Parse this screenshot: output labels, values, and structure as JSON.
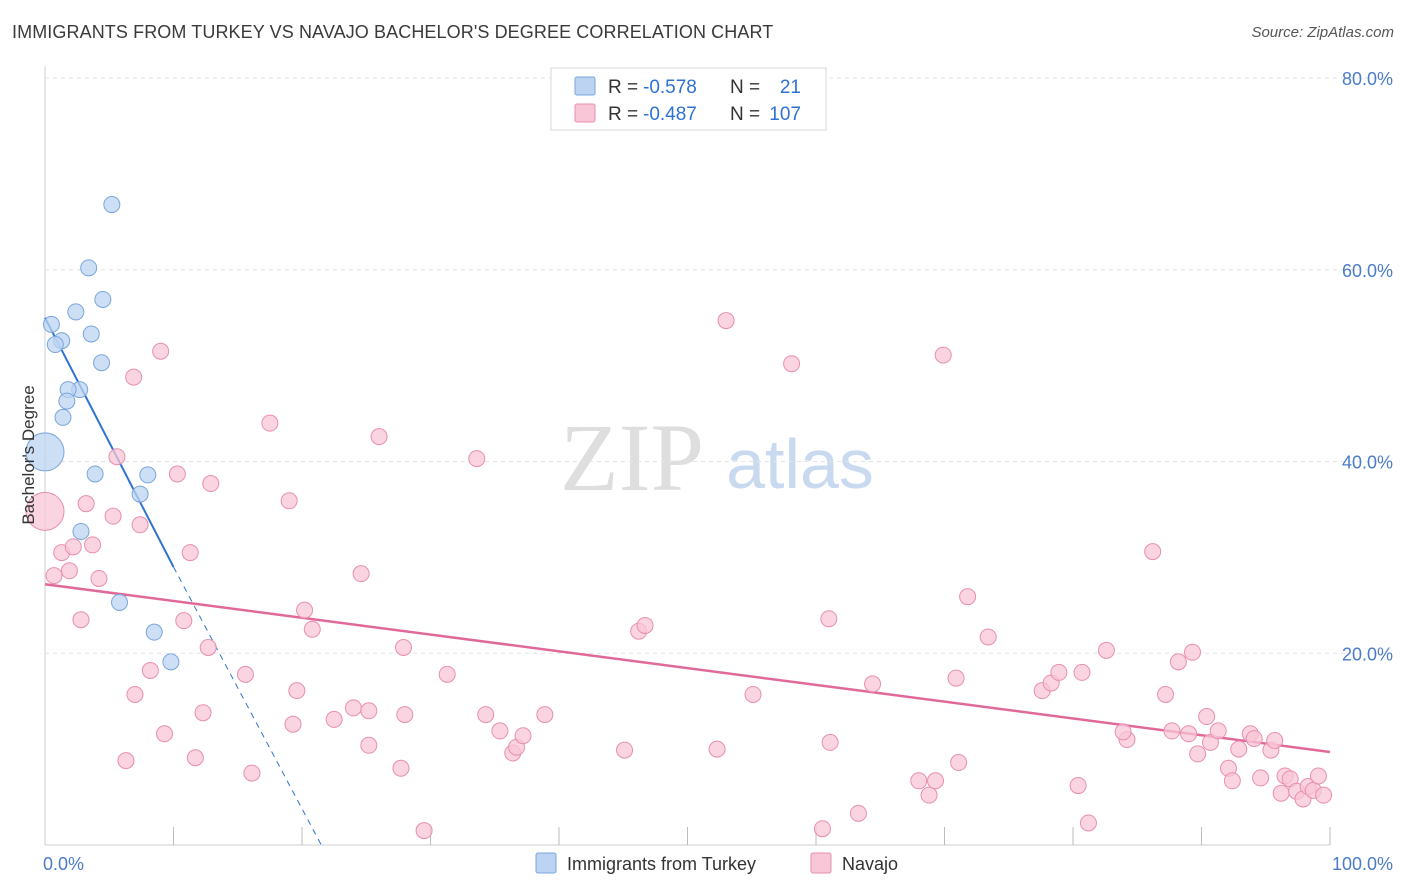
{
  "title": "IMMIGRANTS FROM TURKEY VS NAVAJO BACHELOR'S DEGREE CORRELATION CHART",
  "source": "Source: ZipAtlas.com",
  "watermark": {
    "zip": "ZIP",
    "atlas": "atlas"
  },
  "colors": {
    "turkey_fill": "#bcd4f2",
    "turkey_stroke": "#7aa5dc",
    "turkey_line": "#2e72d2",
    "navajo_fill": "#f8c6d6",
    "navajo_stroke": "#e88fae",
    "navajo_line": "#e0699a",
    "axis_text": "#4a7cc7",
    "grid": "#e3e3e3"
  },
  "legend": {
    "rows": [
      {
        "r_label": "R = ",
        "r_value": "-0.578",
        "n_label": "N = ",
        "n_value": "21"
      },
      {
        "r_label": "R = ",
        "r_value": "-0.487",
        "n_label": "N = ",
        "n_value": "107"
      }
    ]
  },
  "chart_data": {
    "type": "scatter",
    "title": "IMMIGRANTS FROM TURKEY VS NAVAJO BACHELOR'S DEGREE CORRELATION CHART",
    "xlabel": "",
    "ylabel": "Bachelor's Degree",
    "xlim": [
      0,
      100
    ],
    "ylim": [
      0,
      80
    ],
    "y_ticks": [
      {
        "value": 20,
        "label": "20.0%"
      },
      {
        "value": 40,
        "label": "40.0%"
      },
      {
        "value": 60,
        "label": "60.0%"
      },
      {
        "value": 80,
        "label": "80.0%"
      }
    ],
    "x_tick_labels": [
      {
        "value": 0,
        "label": "0.0%"
      },
      {
        "value": 100,
        "label": "100.0%"
      }
    ],
    "x_minor_ticks": [
      10,
      20,
      30,
      40,
      50,
      60,
      70,
      80,
      90,
      100
    ],
    "series": [
      {
        "name": "Immigrants from Turkey",
        "R": -0.578,
        "N": 21,
        "trend": {
          "x_start": 0,
          "y_start": 55.0,
          "x_solid_end": 10,
          "x_dash_end": 21.5
        },
        "points": [
          [
            5.2,
            66.8,
            1
          ],
          [
            3.4,
            60.2,
            1
          ],
          [
            4.5,
            56.9,
            1
          ],
          [
            2.4,
            55.6,
            1
          ],
          [
            0.5,
            54.3,
            1
          ],
          [
            3.6,
            53.3,
            1
          ],
          [
            1.3,
            52.6,
            1
          ],
          [
            0.8,
            52.2,
            1
          ],
          [
            4.4,
            50.3,
            1
          ],
          [
            2.7,
            47.5,
            1
          ],
          [
            1.8,
            47.5,
            1
          ],
          [
            1.7,
            46.3,
            1
          ],
          [
            1.4,
            44.6,
            1
          ],
          [
            0.0,
            41.0,
            3
          ],
          [
            3.9,
            38.7,
            1
          ],
          [
            8.0,
            38.6,
            1
          ],
          [
            7.4,
            36.6,
            1
          ],
          [
            2.8,
            32.7,
            1
          ],
          [
            5.8,
            25.3,
            1
          ],
          [
            8.5,
            22.2,
            1
          ],
          [
            9.8,
            19.1,
            1
          ]
        ]
      },
      {
        "name": "Navajo",
        "R": -0.487,
        "N": 107,
        "trend": {
          "x_start": 0,
          "y_start": 27.2,
          "x_end": 100,
          "y_end": 9.7
        },
        "points": [
          [
            0.0,
            34.8,
            3
          ],
          [
            1.3,
            30.5,
            1
          ],
          [
            1.9,
            28.6,
            1
          ],
          [
            0.7,
            28.1,
            1
          ],
          [
            2.2,
            31.1,
            1
          ],
          [
            3.2,
            35.6,
            1
          ],
          [
            3.7,
            31.3,
            1
          ],
          [
            4.2,
            27.8,
            1
          ],
          [
            2.8,
            23.5,
            1
          ],
          [
            5.3,
            34.3,
            1
          ],
          [
            5.6,
            40.5,
            1
          ],
          [
            7.4,
            33.4,
            1
          ],
          [
            9.0,
            51.5,
            1
          ],
          [
            6.9,
            48.8,
            1
          ],
          [
            10.3,
            38.7,
            1
          ],
          [
            11.3,
            30.5,
            1
          ],
          [
            10.8,
            23.4,
            1
          ],
          [
            12.9,
            37.7,
            1
          ],
          [
            7.0,
            15.7,
            1
          ],
          [
            8.2,
            18.2,
            1
          ],
          [
            9.3,
            11.6,
            1
          ],
          [
            6.3,
            8.8,
            1
          ],
          [
            11.7,
            9.1,
            1
          ],
          [
            12.3,
            13.8,
            1
          ],
          [
            12.7,
            20.6,
            1
          ],
          [
            15.6,
            17.8,
            1
          ],
          [
            16.1,
            7.5,
            1
          ],
          [
            17.5,
            44.0,
            1
          ],
          [
            19.0,
            35.9,
            1
          ],
          [
            19.6,
            16.1,
            1
          ],
          [
            20.2,
            24.5,
            1
          ],
          [
            20.8,
            22.5,
            1
          ],
          [
            19.3,
            12.6,
            1
          ],
          [
            22.5,
            13.1,
            1
          ],
          [
            24.0,
            14.3,
            1
          ],
          [
            24.6,
            28.3,
            1
          ],
          [
            25.2,
            14.0,
            1
          ],
          [
            25.2,
            10.4,
            1
          ],
          [
            26.0,
            42.6,
            1
          ],
          [
            27.7,
            8.0,
            1
          ],
          [
            27.9,
            20.6,
            1
          ],
          [
            28.0,
            13.6,
            1
          ],
          [
            29.5,
            1.5,
            1
          ],
          [
            31.3,
            17.8,
            1
          ],
          [
            33.6,
            40.3,
            1
          ],
          [
            34.3,
            13.6,
            1
          ],
          [
            35.4,
            11.9,
            1
          ],
          [
            36.4,
            9.6,
            1
          ],
          [
            36.7,
            10.2,
            1
          ],
          [
            37.2,
            11.4,
            1
          ],
          [
            38.9,
            13.6,
            1
          ],
          [
            46.2,
            22.3,
            1
          ],
          [
            46.7,
            22.9,
            1
          ],
          [
            45.1,
            9.9,
            1
          ],
          [
            53.0,
            54.7,
            1
          ],
          [
            52.3,
            10.0,
            1
          ],
          [
            55.1,
            15.7,
            1
          ],
          [
            58.1,
            50.2,
            1
          ],
          [
            61.0,
            23.6,
            1
          ],
          [
            61.1,
            10.7,
            1
          ],
          [
            60.5,
            1.7,
            1
          ],
          [
            63.3,
            3.3,
            1
          ],
          [
            64.4,
            16.8,
            1
          ],
          [
            68.0,
            6.7,
            1
          ],
          [
            68.8,
            5.2,
            1
          ],
          [
            69.3,
            6.7,
            1
          ],
          [
            69.9,
            51.1,
            1
          ],
          [
            70.9,
            17.4,
            1
          ],
          [
            71.8,
            25.9,
            1
          ],
          [
            71.1,
            8.6,
            1
          ],
          [
            73.4,
            21.7,
            1
          ],
          [
            77.6,
            16.1,
            1
          ],
          [
            78.3,
            16.9,
            1
          ],
          [
            78.9,
            18.0,
            1
          ],
          [
            80.7,
            18.0,
            1
          ],
          [
            80.4,
            6.2,
            1
          ],
          [
            81.2,
            2.3,
            1
          ],
          [
            82.6,
            20.3,
            1
          ],
          [
            84.2,
            11.0,
            1
          ],
          [
            83.9,
            11.8,
            1
          ],
          [
            86.2,
            30.6,
            1
          ],
          [
            87.2,
            15.7,
            1
          ],
          [
            87.7,
            11.9,
            1
          ],
          [
            88.2,
            19.1,
            1
          ],
          [
            89.3,
            20.1,
            1
          ],
          [
            89.0,
            11.6,
            1
          ],
          [
            89.7,
            9.5,
            1
          ],
          [
            90.4,
            13.4,
            1
          ],
          [
            90.7,
            10.7,
            1
          ],
          [
            91.3,
            11.9,
            1
          ],
          [
            92.1,
            8.0,
            1
          ],
          [
            92.4,
            6.7,
            1
          ],
          [
            92.9,
            10.0,
            1
          ],
          [
            93.8,
            11.6,
            1
          ],
          [
            94.1,
            11.1,
            1
          ],
          [
            94.6,
            7.0,
            1
          ],
          [
            95.4,
            9.9,
            1
          ],
          [
            95.7,
            10.9,
            1
          ],
          [
            96.2,
            5.4,
            1
          ],
          [
            96.5,
            7.2,
            1
          ],
          [
            96.9,
            6.9,
            1
          ],
          [
            97.4,
            5.6,
            1
          ],
          [
            97.9,
            4.8,
            1
          ],
          [
            98.3,
            6.1,
            1
          ],
          [
            98.7,
            5.7,
            1
          ],
          [
            99.1,
            7.2,
            1
          ],
          [
            99.5,
            5.2,
            1
          ]
        ]
      }
    ],
    "legend_entries": [
      "Immigrants from Turkey",
      "Navajo"
    ]
  }
}
